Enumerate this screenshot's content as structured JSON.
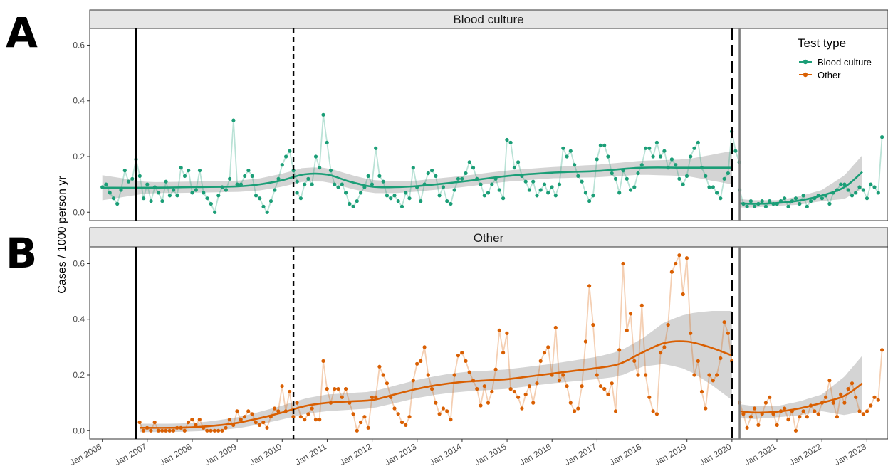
{
  "panel_letters": [
    "A",
    "B"
  ],
  "chart_data": {
    "type": "line",
    "ylabel": "Cases / 1000 person yr",
    "xlabel": "",
    "x_tick_labels": [
      "Jan 2006",
      "Jan 2007",
      "Jan 2008",
      "Jan 2009",
      "Jan 2010",
      "Jan 2011",
      "Jan 2012",
      "Jan 2013",
      "Jan 2014",
      "Jan 2015",
      "Jan 2016",
      "Jan 2017",
      "Jan 2018",
      "Jan 2019",
      "Jan 2020",
      "Jan 2021",
      "Jan 2022",
      "Jan 2023"
    ],
    "x_ticks": [
      2006,
      2007,
      2008,
      2009,
      2010,
      2011,
      2012,
      2013,
      2014,
      2015,
      2016,
      2017,
      2018,
      2019,
      2020,
      2021,
      2022,
      2023
    ],
    "xlim": [
      2005.72,
      2023.47
    ],
    "grid": false,
    "legend": {
      "title": "Test type",
      "placement": "top-right",
      "items": [
        {
          "label": "Blood culture",
          "color": "#1b9e77"
        },
        {
          "label": "Other",
          "color": "#d95f02"
        }
      ]
    },
    "vertical_lines": [
      {
        "x": 2006.75,
        "style": "solid",
        "color": "#000000"
      },
      {
        "x": 2010.25,
        "style": "dashed",
        "color": "#000000"
      },
      {
        "x": 2020.0,
        "style": "longdash",
        "color": "#000000"
      },
      {
        "x": 2020.17,
        "style": "solid",
        "color": "#808080"
      }
    ],
    "panels": [
      {
        "strip": "Blood culture",
        "color": "#1b9e77",
        "ylim": [
          -0.03,
          0.66
        ],
        "y_ticks": [
          0.0,
          0.2,
          0.4,
          0.6
        ],
        "y_tick_labels": [
          "0.0",
          "0.2",
          "0.4",
          "0.6"
        ],
        "series": [
          {
            "segment": 1,
            "x_start": 2006.0,
            "step": 0.08333,
            "values": [
              0.09,
              0.1,
              0.07,
              0.05,
              0.03,
              0.08,
              0.15,
              0.11,
              0.12,
              0.19,
              0.13,
              0.05,
              0.1,
              0.04,
              0.09,
              0.07,
              0.04,
              0.11,
              0.06,
              0.08,
              0.06,
              0.16,
              0.13,
              0.15,
              0.07,
              0.08,
              0.15,
              0.07,
              0.05,
              0.03,
              0.0,
              0.06,
              0.09,
              0.08,
              0.12,
              0.33,
              0.1,
              0.1,
              0.13,
              0.15,
              0.13,
              0.06,
              0.05,
              0.02,
              0.0,
              0.04,
              0.08,
              0.12,
              0.17,
              0.2,
              0.22,
              0.15,
              0.11
            ]
          },
          {
            "segment": 2,
            "x_start": 2010.33,
            "step": 0.08333,
            "values": [
              0.07,
              0.05,
              0.1,
              0.12,
              0.1,
              0.2,
              0.16,
              0.35,
              0.25,
              0.15,
              0.1,
              0.09,
              0.1,
              0.07,
              0.03,
              0.02,
              0.04,
              0.07,
              0.09,
              0.13,
              0.1,
              0.23,
              0.13,
              0.11,
              0.06,
              0.05,
              0.06,
              0.04,
              0.02,
              0.07,
              0.05,
              0.16,
              0.09,
              0.04,
              0.1,
              0.14,
              0.15,
              0.13,
              0.06,
              0.09,
              0.04,
              0.03,
              0.08,
              0.12,
              0.12,
              0.14,
              0.18,
              0.16,
              0.12,
              0.1,
              0.06,
              0.07,
              0.1,
              0.12,
              0.08,
              0.05,
              0.26,
              0.25,
              0.16,
              0.18,
              0.13,
              0.11,
              0.08,
              0.11,
              0.06,
              0.08,
              0.1,
              0.07,
              0.09,
              0.06,
              0.1,
              0.23,
              0.2,
              0.22,
              0.17,
              0.13,
              0.11,
              0.07,
              0.04,
              0.06,
              0.19,
              0.24,
              0.24,
              0.2,
              0.14,
              0.12,
              0.07,
              0.15,
              0.12,
              0.08,
              0.09,
              0.14,
              0.17,
              0.23,
              0.23,
              0.2,
              0.25,
              0.2,
              0.22,
              0.16,
              0.19,
              0.17,
              0.12,
              0.1,
              0.13,
              0.2,
              0.23,
              0.25,
              0.16,
              0.13,
              0.09,
              0.09,
              0.07,
              0.05,
              0.12,
              0.14,
              0.29,
              0.22,
              0.18
            ]
          },
          {
            "segment": 3,
            "x_start": 2020.17,
            "step": 0.08333,
            "values": [
              0.08,
              0.03,
              0.02,
              0.04,
              0.02,
              0.03,
              0.04,
              0.02,
              0.04,
              0.03,
              0.03,
              0.04,
              0.05,
              0.02,
              0.04,
              0.05,
              0.03,
              0.06,
              0.02,
              0.04,
              0.05,
              0.06,
              0.05,
              0.06,
              0.03,
              0.07,
              0.08,
              0.1,
              0.1,
              0.08,
              0.06,
              0.07,
              0.09,
              0.08,
              0.05,
              0.1,
              0.09,
              0.07,
              0.27
            ]
          }
        ],
        "trend": [
          [
            2006.0,
            0.088
          ],
          [
            2007.0,
            0.088
          ],
          [
            2008.0,
            0.09
          ],
          [
            2009.0,
            0.093
          ],
          [
            2009.5,
            0.1
          ],
          [
            2010.0,
            0.115
          ],
          [
            2010.5,
            0.136
          ],
          [
            2011.0,
            0.135
          ],
          [
            2011.5,
            0.11
          ],
          [
            2012.0,
            0.092
          ],
          [
            2012.5,
            0.09
          ],
          [
            2013.0,
            0.094
          ],
          [
            2014.0,
            0.11
          ],
          [
            2015.0,
            0.13
          ],
          [
            2016.0,
            0.142
          ],
          [
            2017.0,
            0.148
          ],
          [
            2018.0,
            0.16
          ],
          [
            2019.0,
            0.16
          ],
          [
            2020.0,
            0.16
          ]
        ],
        "trend_2": [
          [
            2020.17,
            0.032
          ],
          [
            2020.5,
            0.03
          ],
          [
            2021.0,
            0.033
          ],
          [
            2021.5,
            0.042
          ],
          [
            2022.0,
            0.06
          ],
          [
            2022.5,
            0.09
          ],
          [
            2022.9,
            0.145
          ]
        ],
        "band_halfwidth": [
          [
            2006.0,
            0.045
          ],
          [
            2007.0,
            0.02
          ],
          [
            2009.0,
            0.02
          ],
          [
            2010.5,
            0.025
          ],
          [
            2011.5,
            0.025
          ],
          [
            2013.0,
            0.02
          ],
          [
            2016.0,
            0.02
          ],
          [
            2018.0,
            0.025
          ],
          [
            2019.0,
            0.03
          ],
          [
            2020.0,
            0.06
          ]
        ],
        "band_halfwidth_2": [
          [
            2020.17,
            0.015
          ],
          [
            2021.0,
            0.01
          ],
          [
            2022.0,
            0.02
          ],
          [
            2022.9,
            0.06
          ]
        ]
      },
      {
        "strip": "Other",
        "color": "#d95f02",
        "ylim": [
          -0.03,
          0.66
        ],
        "y_ticks": [
          0.0,
          0.2,
          0.4,
          0.6
        ],
        "y_tick_labels": [
          "0.0",
          "0.2",
          "0.4",
          "0.6"
        ],
        "series": [
          {
            "segment": 1,
            "x_start": 2006.83,
            "step": 0.08333,
            "values": [
              0.03,
              0.0,
              0.01,
              0.0,
              0.03,
              0.0,
              0.0,
              0.0,
              0.0,
              0.0,
              0.01,
              0.01,
              0.0,
              0.03,
              0.04,
              0.02,
              0.04,
              0.01,
              0.0,
              0.0,
              0.0,
              0.0,
              0.0,
              0.01,
              0.04,
              0.02,
              0.07,
              0.04,
              0.05,
              0.07,
              0.06,
              0.03,
              0.02,
              0.03,
              0.01,
              0.05,
              0.08,
              0.07,
              0.16,
              0.07,
              0.14,
              0.05
            ]
          },
          {
            "segment": 2,
            "x_start": 2010.33,
            "step": 0.08333,
            "values": [
              0.1,
              0.05,
              0.04,
              0.06,
              0.08,
              0.04,
              0.04,
              0.25,
              0.15,
              0.1,
              0.15,
              0.15,
              0.12,
              0.15,
              0.1,
              0.06,
              0.0,
              0.03,
              0.05,
              0.01,
              0.12,
              0.12,
              0.23,
              0.2,
              0.17,
              0.12,
              0.08,
              0.06,
              0.03,
              0.02,
              0.05,
              0.18,
              0.24,
              0.25,
              0.3,
              0.2,
              0.15,
              0.1,
              0.06,
              0.08,
              0.07,
              0.04,
              0.2,
              0.27,
              0.28,
              0.25,
              0.21,
              0.18,
              0.15,
              0.09,
              0.16,
              0.1,
              0.14,
              0.22,
              0.36,
              0.28,
              0.35,
              0.15,
              0.14,
              0.12,
              0.08,
              0.13,
              0.16,
              0.1,
              0.17,
              0.25,
              0.28,
              0.3,
              0.2,
              0.37,
              0.18,
              0.2,
              0.16,
              0.1,
              0.07,
              0.08,
              0.16,
              0.32,
              0.52,
              0.38,
              0.2,
              0.16,
              0.15,
              0.13,
              0.17,
              0.07,
              0.29,
              0.6,
              0.36,
              0.42,
              0.25,
              0.2,
              0.45,
              0.2,
              0.12,
              0.07,
              0.06,
              0.28,
              0.3,
              0.38,
              0.57,
              0.6,
              0.63,
              0.49,
              0.62,
              0.35,
              0.2,
              0.25,
              0.14,
              0.08,
              0.2,
              0.18,
              0.2,
              0.26,
              0.39,
              0.35,
              0.25
            ]
          },
          {
            "segment": 3,
            "x_start": 2020.17,
            "step": 0.08333,
            "values": [
              0.1,
              0.06,
              0.01,
              0.05,
              0.08,
              0.02,
              0.06,
              0.1,
              0.12,
              0.06,
              0.02,
              0.07,
              0.08,
              0.04,
              0.07,
              0.0,
              0.05,
              0.07,
              0.05,
              0.09,
              0.07,
              0.06,
              0.1,
              0.12,
              0.18,
              0.1,
              0.05,
              0.13,
              0.1,
              0.15,
              0.17,
              0.12,
              0.07,
              0.06,
              0.07,
              0.09,
              0.12,
              0.11,
              0.29
            ]
          }
        ],
        "trend": [
          [
            2006.83,
            0.01
          ],
          [
            2007.5,
            0.01
          ],
          [
            2008.0,
            0.012
          ],
          [
            2008.5,
            0.018
          ],
          [
            2009.0,
            0.028
          ],
          [
            2009.5,
            0.045
          ],
          [
            2010.0,
            0.065
          ],
          [
            2010.5,
            0.088
          ],
          [
            2011.0,
            0.1
          ],
          [
            2011.5,
            0.105
          ],
          [
            2012.0,
            0.11
          ],
          [
            2012.5,
            0.13
          ],
          [
            2013.0,
            0.15
          ],
          [
            2013.5,
            0.165
          ],
          [
            2014.0,
            0.175
          ],
          [
            2014.5,
            0.18
          ],
          [
            2015.0,
            0.185
          ],
          [
            2015.5,
            0.195
          ],
          [
            2016.0,
            0.205
          ],
          [
            2016.5,
            0.215
          ],
          [
            2017.0,
            0.225
          ],
          [
            2017.5,
            0.24
          ],
          [
            2018.0,
            0.28
          ],
          [
            2018.5,
            0.315
          ],
          [
            2019.0,
            0.32
          ],
          [
            2019.5,
            0.3
          ],
          [
            2020.0,
            0.27
          ]
        ],
        "trend_2": [
          [
            2020.17,
            0.07
          ],
          [
            2020.5,
            0.065
          ],
          [
            2021.0,
            0.068
          ],
          [
            2021.5,
            0.08
          ],
          [
            2022.0,
            0.1
          ],
          [
            2022.5,
            0.125
          ],
          [
            2022.9,
            0.17
          ]
        ],
        "band_halfwidth": [
          [
            2006.83,
            0.015
          ],
          [
            2008.0,
            0.015
          ],
          [
            2009.0,
            0.02
          ],
          [
            2010.0,
            0.025
          ],
          [
            2011.0,
            0.03
          ],
          [
            2012.0,
            0.03
          ],
          [
            2014.0,
            0.035
          ],
          [
            2016.0,
            0.035
          ],
          [
            2017.0,
            0.04
          ],
          [
            2018.0,
            0.05
          ],
          [
            2019.0,
            0.1
          ],
          [
            2020.0,
            0.16
          ]
        ],
        "band_halfwidth_2": [
          [
            2020.17,
            0.025
          ],
          [
            2021.0,
            0.02
          ],
          [
            2022.0,
            0.03
          ],
          [
            2022.9,
            0.1
          ]
        ]
      }
    ]
  }
}
